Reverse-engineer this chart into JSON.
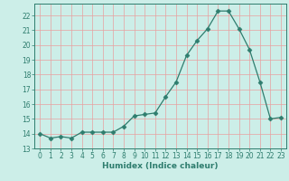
{
  "x": [
    0,
    1,
    2,
    3,
    4,
    5,
    6,
    7,
    8,
    9,
    10,
    11,
    12,
    13,
    14,
    15,
    16,
    17,
    18,
    19,
    20,
    21,
    22,
    23
  ],
  "y": [
    14.0,
    13.7,
    13.8,
    13.7,
    14.1,
    14.1,
    14.1,
    14.1,
    14.5,
    15.2,
    15.3,
    15.4,
    16.5,
    17.5,
    19.3,
    20.3,
    21.1,
    22.3,
    22.3,
    21.1,
    19.7,
    17.5,
    15.0,
    15.1
  ],
  "xlabel": "Humidex (Indice chaleur)",
  "line_color": "#2e7d6e",
  "marker": "D",
  "marker_size": 2.5,
  "bg_color": "#cceee8",
  "grid_color": "#e8a0a0",
  "ylim": [
    13,
    22.8
  ],
  "xlim": [
    -0.5,
    23.5
  ],
  "yticks": [
    13,
    14,
    15,
    16,
    17,
    18,
    19,
    20,
    21,
    22
  ],
  "xticks": [
    0,
    1,
    2,
    3,
    4,
    5,
    6,
    7,
    8,
    9,
    10,
    11,
    12,
    13,
    14,
    15,
    16,
    17,
    18,
    19,
    20,
    21,
    22,
    23
  ],
  "tick_fontsize": 5.5,
  "xlabel_fontsize": 6.5
}
